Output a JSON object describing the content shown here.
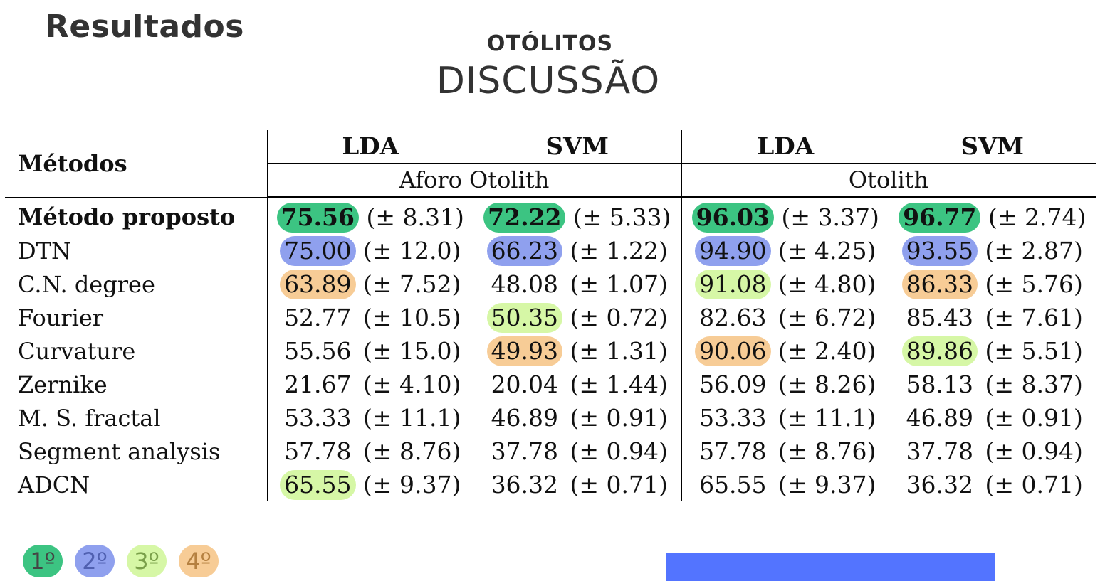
{
  "header": {
    "section": "Resultados",
    "overline": "OTÓLITOS",
    "title": "DISCUSSÃO"
  },
  "table": {
    "methods_header": "Métodos",
    "classifiers": [
      "LDA",
      "SVM",
      "LDA",
      "SVM"
    ],
    "datasets": [
      "Aforo Otolith",
      "Otolith"
    ],
    "rows": [
      {
        "method": "Método proposto",
        "bold": true,
        "cells": [
          {
            "value": "75.56",
            "std": "(± 8.31)",
            "rank": 1
          },
          {
            "value": "72.22",
            "std": "(± 5.33)",
            "rank": 1
          },
          {
            "value": "96.03",
            "std": "(± 3.37)",
            "rank": 1
          },
          {
            "value": "96.77",
            "std": "(± 2.74)",
            "rank": 1
          }
        ]
      },
      {
        "method": "DTN",
        "cells": [
          {
            "value": "75.00",
            "std": "(± 12.0)",
            "rank": 2
          },
          {
            "value": "66.23",
            "std": "(± 1.22)",
            "rank": 2
          },
          {
            "value": "94.90",
            "std": "(± 4.25)",
            "rank": 2
          },
          {
            "value": "93.55",
            "std": "(± 2.87)",
            "rank": 2
          }
        ]
      },
      {
        "method": "C.N. degree",
        "cells": [
          {
            "value": "63.89",
            "std": "(± 7.52)",
            "rank": 4
          },
          {
            "value": "48.08",
            "std": "(± 1.07)",
            "rank": 0
          },
          {
            "value": "91.08",
            "std": "(± 4.80)",
            "rank": 3
          },
          {
            "value": "86.33",
            "std": "(± 5.76)",
            "rank": 4
          }
        ]
      },
      {
        "method": "Fourier",
        "cells": [
          {
            "value": "52.77",
            "std": "(± 10.5)",
            "rank": 0
          },
          {
            "value": "50.35",
            "std": "(± 0.72)",
            "rank": 3
          },
          {
            "value": "82.63",
            "std": "(± 6.72)",
            "rank": 0
          },
          {
            "value": "85.43",
            "std": "(± 7.61)",
            "rank": 0
          }
        ]
      },
      {
        "method": "Curvature",
        "cells": [
          {
            "value": "55.56",
            "std": "(± 15.0)",
            "rank": 0
          },
          {
            "value": "49.93",
            "std": "(± 1.31)",
            "rank": 4
          },
          {
            "value": "90.06",
            "std": "(± 2.40)",
            "rank": 4
          },
          {
            "value": "89.86",
            "std": "(± 5.51)",
            "rank": 3
          }
        ]
      },
      {
        "method": "Zernike",
        "cells": [
          {
            "value": "21.67",
            "std": "(± 4.10)",
            "rank": 0
          },
          {
            "value": "20.04",
            "std": "(± 1.44)",
            "rank": 0
          },
          {
            "value": "56.09",
            "std": "(± 8.26)",
            "rank": 0
          },
          {
            "value": "58.13",
            "std": "(± 8.37)",
            "rank": 0
          }
        ]
      },
      {
        "method": "M. S. fractal",
        "cells": [
          {
            "value": "53.33",
            "std": "(± 11.1)",
            "rank": 0
          },
          {
            "value": "46.89",
            "std": "(± 0.91)",
            "rank": 0
          },
          {
            "value": "53.33",
            "std": "(± 11.1)",
            "rank": 0
          },
          {
            "value": "46.89",
            "std": "(± 0.91)",
            "rank": 0
          }
        ]
      },
      {
        "method": "Segment analysis",
        "cells": [
          {
            "value": "57.78",
            "std": "(± 8.76)",
            "rank": 0
          },
          {
            "value": "37.78",
            "std": "(± 0.94)",
            "rank": 0
          },
          {
            "value": "57.78",
            "std": "(± 8.76)",
            "rank": 0
          },
          {
            "value": "37.78",
            "std": "(± 0.94)",
            "rank": 0
          }
        ]
      },
      {
        "method": "ADCN",
        "cells": [
          {
            "value": "65.55",
            "std": "(± 9.37)",
            "rank": 3
          },
          {
            "value": "36.32",
            "std": "(± 0.71)",
            "rank": 0
          },
          {
            "value": "65.55",
            "std": "(± 9.37)",
            "rank": 0
          },
          {
            "value": "36.32",
            "std": "(± 0.71)",
            "rank": 0
          }
        ]
      }
    ]
  },
  "legend": [
    {
      "label": "1º",
      "rank": 1,
      "color": "#3cc482"
    },
    {
      "label": "2º",
      "rank": 2,
      "color": "#8fa0ee"
    },
    {
      "label": "3º",
      "rank": 3,
      "color": "#d6f7a6"
    },
    {
      "label": "4º",
      "rank": 4,
      "color": "#f7cc96"
    }
  ],
  "colors": {
    "accent_bar": "#5374ff",
    "heading_text": "#333333"
  }
}
